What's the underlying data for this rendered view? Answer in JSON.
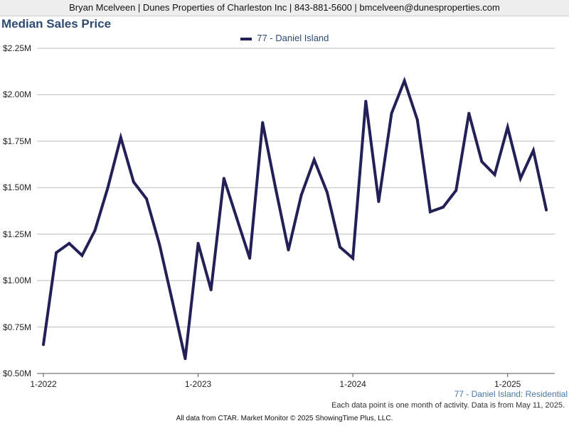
{
  "header": {
    "contact": "Bryan Mcelveen | Dunes Properties of Charleston Inc | 843-881-5600 | bmcelveen@dunesproperties.com"
  },
  "title": "Median Sales Price",
  "subtitle": "77 - Daniel Island: Residential",
  "note": "Each data point is one month of activity. Data is from May 11, 2025.",
  "footer": "All data from CTAR. Market Monitor © 2025 ShowingTime Plus, LLC.",
  "colors": {
    "series": "#232057",
    "grid": "#bbbbbb",
    "title": "#2e4a72"
  },
  "chart_data": {
    "type": "line",
    "title": "Median Sales Price",
    "ylim": [
      500000,
      2250000
    ],
    "yticks": [
      500000,
      750000,
      1000000,
      1250000,
      1500000,
      1750000,
      2000000,
      2250000
    ],
    "ytick_labels": [
      "$0.50M",
      "$0.75M",
      "$1.00M",
      "$1.25M",
      "$1.50M",
      "$1.75M",
      "$2.00M",
      "$2.25M"
    ],
    "xtick_labels": [
      "1-2022",
      "1-2023",
      "1-2024",
      "1-2025"
    ],
    "x": [
      "2022-01",
      "2022-02",
      "2022-03",
      "2022-04",
      "2022-05",
      "2022-06",
      "2022-07",
      "2022-08",
      "2022-09",
      "2022-10",
      "2022-11",
      "2022-12",
      "2023-01",
      "2023-02",
      "2023-03",
      "2023-04",
      "2023-05",
      "2023-06",
      "2023-07",
      "2023-08",
      "2023-09",
      "2023-10",
      "2023-11",
      "2023-12",
      "2024-01",
      "2024-02",
      "2024-03",
      "2024-04",
      "2024-05",
      "2024-06",
      "2024-07",
      "2024-08",
      "2024-09",
      "2024-10",
      "2024-11",
      "2024-12",
      "2025-01",
      "2025-02",
      "2025-03",
      "2025-04"
    ],
    "legend_position": "top-center",
    "grid": true,
    "series": [
      {
        "name": "77 - Daniel Island",
        "values": [
          655000,
          1150000,
          1200000,
          1135000,
          1270000,
          1500000,
          1770000,
          1530000,
          1440000,
          1195000,
          890000,
          580000,
          1200000,
          950000,
          1550000,
          1335000,
          1120000,
          1850000,
          1500000,
          1165000,
          1460000,
          1650000,
          1475000,
          1180000,
          1120000,
          1965000,
          1425000,
          1900000,
          2075000,
          1865000,
          1370000,
          1395000,
          1485000,
          1900000,
          1640000,
          1570000,
          1825000,
          1550000,
          1700000,
          1380000
        ]
      }
    ]
  }
}
